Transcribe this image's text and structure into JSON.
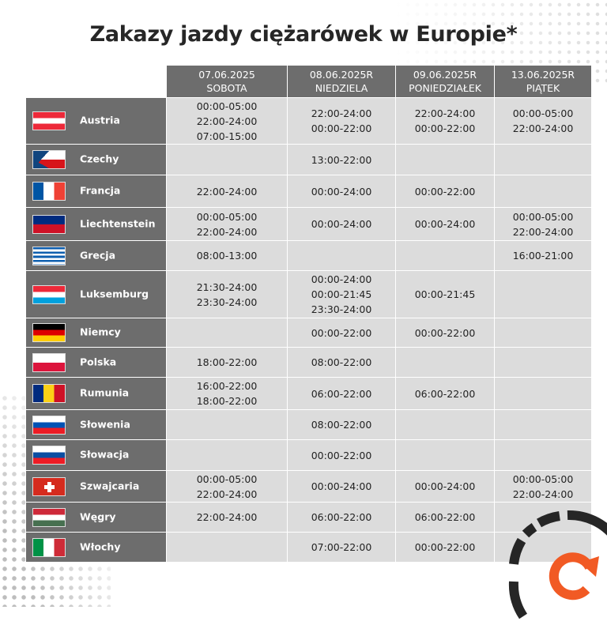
{
  "title": "Zakazy jazdy ciężarówek w Europie*",
  "columns": [
    {
      "date": "07.06.2025",
      "day": "SOBOTA"
    },
    {
      "date": "08.06.2025R",
      "day": "NIEDZIELA"
    },
    {
      "date": "09.06.2025R",
      "day": "PONIEDZIAŁEK"
    },
    {
      "date": "13.06.2025R",
      "day": "PIĄTEK"
    }
  ],
  "rows": [
    {
      "country": "Austria",
      "flag": "f-at",
      "cells": [
        [
          "00:00-05:00",
          "22:00-24:00",
          "07:00-15:00"
        ],
        [
          "22:00-24:00",
          "00:00-22:00"
        ],
        [
          "22:00-24:00",
          "00:00-22:00"
        ],
        [
          "00:00-05:00",
          "22:00-24:00"
        ]
      ]
    },
    {
      "country": "Czechy",
      "flag": "f-cz",
      "cells": [
        [],
        [
          "13:00-22:00"
        ],
        [],
        []
      ]
    },
    {
      "country": "Francja",
      "flag": "f-fr",
      "cells": [
        [
          "22:00-24:00"
        ],
        [
          "00:00-24:00"
        ],
        [
          "00:00-22:00"
        ],
        []
      ]
    },
    {
      "country": "Liechtenstein",
      "flag": "f-li",
      "cells": [
        [
          "00:00-05:00",
          "22:00-24:00"
        ],
        [
          "00:00-24:00"
        ],
        [
          "00:00-24:00"
        ],
        [
          "00:00-05:00",
          "22:00-24:00"
        ]
      ]
    },
    {
      "country": "Grecja",
      "flag": "f-gr",
      "cells": [
        [
          "08:00-13:00"
        ],
        [],
        [],
        [
          "16:00-21:00"
        ]
      ]
    },
    {
      "country": "Luksemburg",
      "flag": "f-lu",
      "cells": [
        [
          "21:30-24:00",
          "23:30-24:00"
        ],
        [
          "00:00-24:00",
          "00:00-21:45",
          "23:30-24:00"
        ],
        [
          "00:00-21:45"
        ],
        []
      ]
    },
    {
      "country": "Niemcy",
      "flag": "f-de",
      "cells": [
        [],
        [
          "00:00-22:00"
        ],
        [
          "00:00-22:00"
        ],
        []
      ]
    },
    {
      "country": "Polska",
      "flag": "f-pl",
      "cells": [
        [
          "18:00-22:00"
        ],
        [
          "08:00-22:00"
        ],
        [],
        []
      ]
    },
    {
      "country": "Rumunia",
      "flag": "f-ro",
      "cells": [
        [
          "16:00-22:00",
          "18:00-22:00"
        ],
        [
          "06:00-22:00"
        ],
        [
          "06:00-22:00"
        ],
        []
      ]
    },
    {
      "country": "Słowenia",
      "flag": "f-si",
      "cells": [
        [],
        [
          "08:00-22:00"
        ],
        [],
        []
      ]
    },
    {
      "country": "Słowacja",
      "flag": "f-sk",
      "cells": [
        [],
        [
          "00:00-22:00"
        ],
        [],
        []
      ]
    },
    {
      "country": "Szwajcaria",
      "flag": "f-ch",
      "cells": [
        [
          "00:00-05:00",
          "22:00-24:00"
        ],
        [
          "00:00-24:00"
        ],
        [
          "00:00-24:00"
        ],
        [
          "00:00-05:00",
          "22:00-24:00"
        ]
      ]
    },
    {
      "country": "Węgry",
      "flag": "f-hu",
      "cells": [
        [
          "22:00-24:00"
        ],
        [
          "06:00-22:00"
        ],
        [
          "06:00-22:00"
        ],
        []
      ]
    },
    {
      "country": "Włochy",
      "flag": "f-it",
      "cells": [
        [],
        [
          "07:00-22:00"
        ],
        [
          "00:00-22:00"
        ],
        []
      ]
    }
  ],
  "colors": {
    "header": "#6d6d6d",
    "cell": "#dcdcdc",
    "accent": "#f15a24",
    "ring": "#262626"
  }
}
